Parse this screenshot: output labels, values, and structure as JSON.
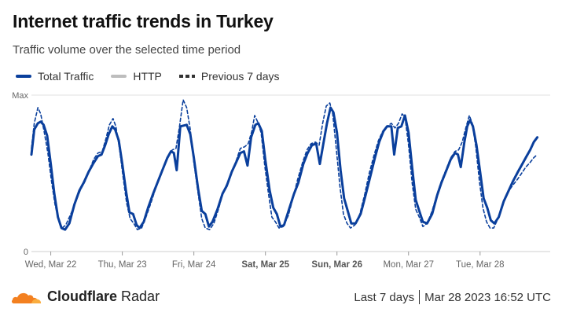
{
  "header": {
    "title": "Internet traffic trends in Turkey",
    "subtitle": "Traffic volume over the selected time period"
  },
  "legend": {
    "total": "Total Traffic",
    "http": "HTTP",
    "previous": "Previous 7 days"
  },
  "colors": {
    "total": "#0a3f9c",
    "previous": "#0a3f9c",
    "logo_orange": "#f38020"
  },
  "footer": {
    "brand_bold": "Cloudflare",
    "brand_light": "Radar",
    "range": "Last 7 days",
    "timestamp": "Mar 28 2023 16:52 UTC"
  },
  "chart_data": {
    "type": "line",
    "y_tick_labels": [
      "Max",
      "0"
    ],
    "ylim": [
      0,
      100
    ],
    "xlim": [
      0,
      7.25
    ],
    "grid": "horizontal",
    "legend_position": "top-left",
    "x_ticks": [
      {
        "label": "Wed, Mar 22",
        "x": 0.27,
        "bold": false
      },
      {
        "label": "Thu, Mar 23",
        "x": 1.27,
        "bold": false
      },
      {
        "label": "Fri, Mar 24",
        "x": 2.27,
        "bold": false
      },
      {
        "label": "Sat, Mar 25",
        "x": 3.27,
        "bold": true
      },
      {
        "label": "Sun, Mar 26",
        "x": 4.27,
        "bold": true
      },
      {
        "label": "Mon, Mar 27",
        "x": 5.27,
        "bold": false
      },
      {
        "label": "Tue, Mar 28",
        "x": 6.27,
        "bold": false
      }
    ],
    "series": [
      {
        "name": "Total Traffic",
        "style": "solid",
        "points": [
          [
            0.0,
            62
          ],
          [
            0.04,
            78
          ],
          [
            0.09,
            82
          ],
          [
            0.13,
            83
          ],
          [
            0.17,
            81
          ],
          [
            0.22,
            74
          ],
          [
            0.27,
            56
          ],
          [
            0.32,
            37
          ],
          [
            0.37,
            22
          ],
          [
            0.42,
            15
          ],
          [
            0.47,
            14
          ],
          [
            0.53,
            18
          ],
          [
            0.6,
            30
          ],
          [
            0.67,
            39
          ],
          [
            0.73,
            44
          ],
          [
            0.8,
            51
          ],
          [
            0.86,
            56
          ],
          [
            0.93,
            61
          ],
          [
            0.98,
            62
          ],
          [
            1.03,
            68
          ],
          [
            1.08,
            75
          ],
          [
            1.13,
            80
          ],
          [
            1.17,
            78
          ],
          [
            1.22,
            71
          ],
          [
            1.27,
            56
          ],
          [
            1.32,
            39
          ],
          [
            1.37,
            25
          ],
          [
            1.42,
            24
          ],
          [
            1.47,
            17
          ],
          [
            1.51,
            15
          ],
          [
            1.57,
            19
          ],
          [
            1.63,
            28
          ],
          [
            1.7,
            37
          ],
          [
            1.77,
            45
          ],
          [
            1.83,
            52
          ],
          [
            1.9,
            60
          ],
          [
            1.95,
            64
          ],
          [
            1.99,
            63
          ],
          [
            2.03,
            52
          ],
          [
            2.08,
            80
          ],
          [
            2.17,
            81
          ],
          [
            2.22,
            75
          ],
          [
            2.27,
            60
          ],
          [
            2.33,
            40
          ],
          [
            2.38,
            26
          ],
          [
            2.43,
            24
          ],
          [
            2.48,
            16
          ],
          [
            2.53,
            19
          ],
          [
            2.6,
            27
          ],
          [
            2.67,
            37
          ],
          [
            2.73,
            42
          ],
          [
            2.8,
            51
          ],
          [
            2.86,
            57
          ],
          [
            2.92,
            63
          ],
          [
            2.97,
            64
          ],
          [
            3.02,
            55
          ],
          [
            3.07,
            73
          ],
          [
            3.13,
            81
          ],
          [
            3.17,
            82
          ],
          [
            3.22,
            77
          ],
          [
            3.27,
            58
          ],
          [
            3.33,
            39
          ],
          [
            3.38,
            28
          ],
          [
            3.43,
            24
          ],
          [
            3.48,
            16
          ],
          [
            3.53,
            17
          ],
          [
            3.6,
            27
          ],
          [
            3.67,
            37
          ],
          [
            3.73,
            44
          ],
          [
            3.8,
            56
          ],
          [
            3.86,
            63
          ],
          [
            3.92,
            68
          ],
          [
            3.98,
            69
          ],
          [
            4.03,
            56
          ],
          [
            4.08,
            69
          ],
          [
            4.13,
            82
          ],
          [
            4.18,
            92
          ],
          [
            4.22,
            89
          ],
          [
            4.27,
            76
          ],
          [
            4.32,
            52
          ],
          [
            4.37,
            34
          ],
          [
            4.42,
            26
          ],
          [
            4.47,
            18
          ],
          [
            4.53,
            18
          ],
          [
            4.6,
            24
          ],
          [
            4.67,
            36
          ],
          [
            4.73,
            47
          ],
          [
            4.8,
            60
          ],
          [
            4.86,
            70
          ],
          [
            4.92,
            77
          ],
          [
            4.97,
            80
          ],
          [
            5.03,
            80
          ],
          [
            5.07,
            62
          ],
          [
            5.12,
            79
          ],
          [
            5.17,
            80
          ],
          [
            5.22,
            87
          ],
          [
            5.27,
            76
          ],
          [
            5.32,
            54
          ],
          [
            5.37,
            33
          ],
          [
            5.42,
            26
          ],
          [
            5.47,
            19
          ],
          [
            5.53,
            18
          ],
          [
            5.6,
            24
          ],
          [
            5.67,
            36
          ],
          [
            5.73,
            44
          ],
          [
            5.8,
            52
          ],
          [
            5.86,
            59
          ],
          [
            5.92,
            63
          ],
          [
            5.96,
            62
          ],
          [
            6.0,
            54
          ],
          [
            6.05,
            70
          ],
          [
            6.09,
            80
          ],
          [
            6.13,
            84
          ],
          [
            6.17,
            80
          ],
          [
            6.22,
            68
          ],
          [
            6.27,
            51
          ],
          [
            6.32,
            34
          ],
          [
            6.37,
            28
          ],
          [
            6.42,
            20
          ],
          [
            6.47,
            18
          ],
          [
            6.53,
            22
          ],
          [
            6.6,
            32
          ],
          [
            6.67,
            39
          ],
          [
            6.73,
            45
          ],
          [
            6.8,
            51
          ],
          [
            6.86,
            56
          ],
          [
            6.92,
            61
          ],
          [
            6.97,
            65
          ],
          [
            7.02,
            70
          ],
          [
            7.07,
            73
          ]
        ]
      },
      {
        "name": "Previous 7 days",
        "style": "dashed",
        "points": [
          [
            0.0,
            66
          ],
          [
            0.04,
            82
          ],
          [
            0.09,
            92
          ],
          [
            0.13,
            88
          ],
          [
            0.18,
            76
          ],
          [
            0.23,
            63
          ],
          [
            0.28,
            45
          ],
          [
            0.33,
            30
          ],
          [
            0.38,
            20
          ],
          [
            0.43,
            15
          ],
          [
            0.48,
            17
          ],
          [
            0.55,
            24
          ],
          [
            0.62,
            32
          ],
          [
            0.69,
            40
          ],
          [
            0.75,
            45
          ],
          [
            0.81,
            52
          ],
          [
            0.87,
            59
          ],
          [
            0.93,
            63
          ],
          [
            0.99,
            64
          ],
          [
            1.04,
            72
          ],
          [
            1.09,
            81
          ],
          [
            1.14,
            85
          ],
          [
            1.18,
            80
          ],
          [
            1.23,
            66
          ],
          [
            1.28,
            48
          ],
          [
            1.33,
            31
          ],
          [
            1.38,
            21
          ],
          [
            1.43,
            18
          ],
          [
            1.48,
            14
          ],
          [
            1.54,
            15
          ],
          [
            1.6,
            22
          ],
          [
            1.67,
            31
          ],
          [
            1.74,
            41
          ],
          [
            1.8,
            48
          ],
          [
            1.86,
            55
          ],
          [
            1.92,
            62
          ],
          [
            1.97,
            65
          ],
          [
            2.02,
            66
          ],
          [
            2.07,
            80
          ],
          [
            2.12,
            97
          ],
          [
            2.17,
            92
          ],
          [
            2.22,
            78
          ],
          [
            2.27,
            57
          ],
          [
            2.33,
            37
          ],
          [
            2.38,
            21
          ],
          [
            2.43,
            15
          ],
          [
            2.49,
            14
          ],
          [
            2.55,
            18
          ],
          [
            2.62,
            28
          ],
          [
            2.68,
            38
          ],
          [
            2.74,
            44
          ],
          [
            2.8,
            51
          ],
          [
            2.86,
            58
          ],
          [
            2.92,
            66
          ],
          [
            2.98,
            67
          ],
          [
            3.03,
            69
          ],
          [
            3.08,
            77
          ],
          [
            3.12,
            87
          ],
          [
            3.16,
            83
          ],
          [
            3.21,
            76
          ],
          [
            3.26,
            55
          ],
          [
            3.31,
            38
          ],
          [
            3.36,
            22
          ],
          [
            3.41,
            19
          ],
          [
            3.46,
            15
          ],
          [
            3.52,
            16
          ],
          [
            3.59,
            23
          ],
          [
            3.66,
            35
          ],
          [
            3.72,
            46
          ],
          [
            3.79,
            57
          ],
          [
            3.85,
            65
          ],
          [
            3.91,
            69
          ],
          [
            3.97,
            70
          ],
          [
            4.02,
            68
          ],
          [
            4.07,
            82
          ],
          [
            4.12,
            93
          ],
          [
            4.17,
            95
          ],
          [
            4.21,
            88
          ],
          [
            4.26,
            66
          ],
          [
            4.31,
            42
          ],
          [
            4.36,
            24
          ],
          [
            4.41,
            18
          ],
          [
            4.46,
            15
          ],
          [
            4.52,
            17
          ],
          [
            4.59,
            24
          ],
          [
            4.66,
            37
          ],
          [
            4.72,
            50
          ],
          [
            4.79,
            62
          ],
          [
            4.85,
            71
          ],
          [
            4.91,
            77
          ],
          [
            4.97,
            80
          ],
          [
            5.03,
            82
          ],
          [
            5.08,
            79
          ],
          [
            5.13,
            82
          ],
          [
            5.18,
            88
          ],
          [
            5.22,
            86
          ],
          [
            5.27,
            68
          ],
          [
            5.32,
            44
          ],
          [
            5.37,
            27
          ],
          [
            5.42,
            22
          ],
          [
            5.47,
            16
          ],
          [
            5.53,
            18
          ],
          [
            5.6,
            26
          ],
          [
            5.67,
            37
          ],
          [
            5.73,
            45
          ],
          [
            5.8,
            53
          ],
          [
            5.86,
            60
          ],
          [
            5.92,
            64
          ],
          [
            5.97,
            65
          ],
          [
            6.02,
            70
          ],
          [
            6.07,
            79
          ],
          [
            6.12,
            87
          ],
          [
            6.16,
            82
          ],
          [
            6.21,
            67
          ],
          [
            6.26,
            45
          ],
          [
            6.31,
            28
          ],
          [
            6.36,
            19
          ],
          [
            6.41,
            15
          ],
          [
            6.46,
            15
          ],
          [
            6.52,
            21
          ],
          [
            6.59,
            31
          ],
          [
            6.66,
            38
          ],
          [
            6.72,
            42
          ],
          [
            6.79,
            46
          ],
          [
            6.85,
            50
          ],
          [
            6.91,
            54
          ],
          [
            6.97,
            57
          ],
          [
            7.02,
            60
          ],
          [
            7.07,
            62
          ]
        ]
      }
    ]
  }
}
